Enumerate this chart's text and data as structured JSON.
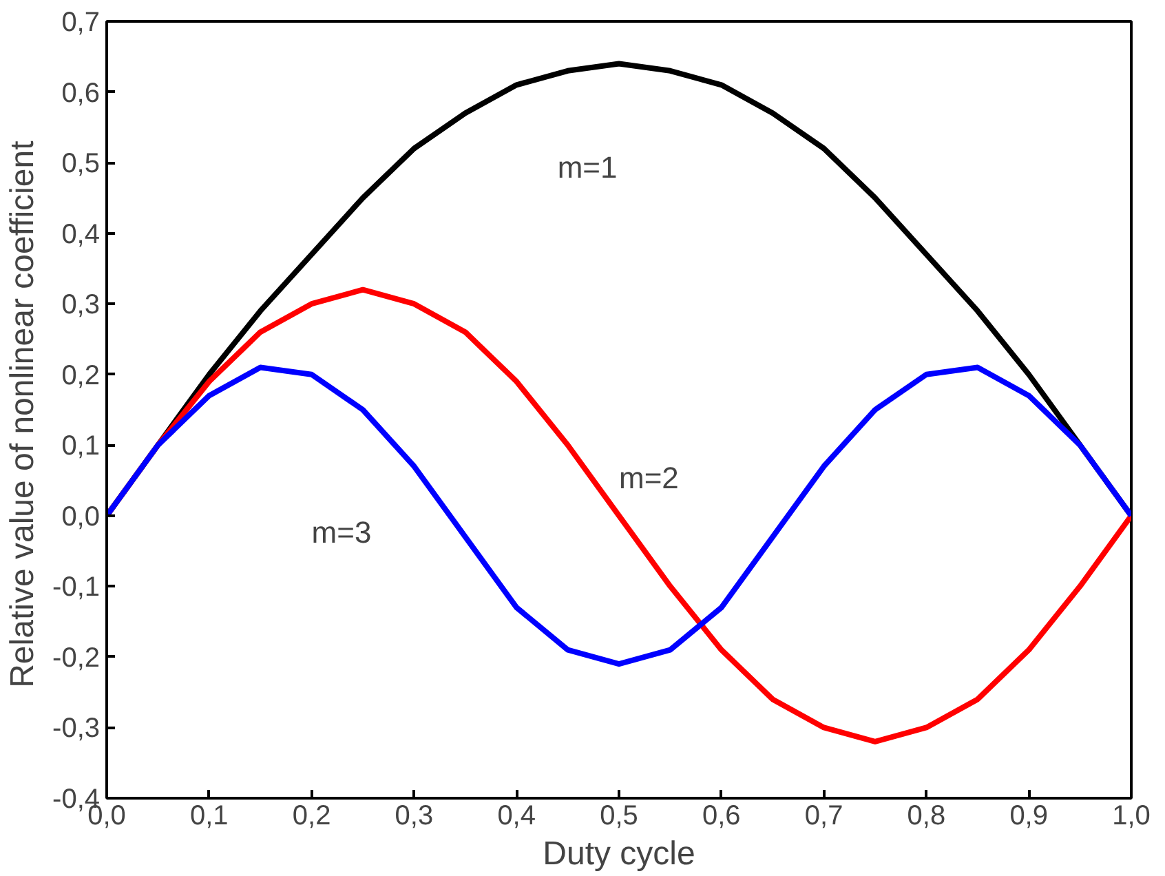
{
  "chart_data": {
    "type": "line",
    "xlabel": "Duty cycle",
    "ylabel": "Relative value of  nonlinear coefficient",
    "x": [
      0,
      0.05,
      0.1,
      0.15,
      0.2,
      0.25,
      0.3,
      0.35,
      0.4,
      0.45,
      0.5,
      0.55,
      0.6,
      0.65,
      0.7,
      0.75,
      0.8,
      0.85,
      0.9,
      0.95,
      1
    ],
    "series": [
      {
        "name": "m=1",
        "color": "#000000",
        "values": [
          0,
          0.1,
          0.2,
          0.29,
          0.37,
          0.45,
          0.52,
          0.57,
          0.61,
          0.63,
          0.64,
          0.63,
          0.61,
          0.57,
          0.52,
          0.45,
          0.37,
          0.29,
          0.2,
          0.1,
          0
        ]
      },
      {
        "name": "m=2",
        "color": "#ff0000",
        "values": [
          0,
          0.1,
          0.19,
          0.26,
          0.3,
          0.32,
          0.3,
          0.26,
          0.19,
          0.1,
          0,
          -0.1,
          -0.19,
          -0.26,
          -0.3,
          -0.32,
          -0.3,
          -0.26,
          -0.19,
          -0.1,
          0
        ]
      },
      {
        "name": "m=3",
        "color": "#0000ff",
        "values": [
          0,
          0.1,
          0.17,
          0.21,
          0.2,
          0.15,
          0.07,
          -0.03,
          -0.13,
          -0.19,
          -0.21,
          -0.19,
          -0.13,
          -0.03,
          0.07,
          0.15,
          0.2,
          0.21,
          0.17,
          0.1,
          0
        ]
      }
    ],
    "xlim": [
      0,
      1
    ],
    "ylim": [
      -0.4,
      0.7
    ],
    "xticks": [
      {
        "value": 0,
        "label": "0,0"
      },
      {
        "value": 0.1,
        "label": "0,1"
      },
      {
        "value": 0.2,
        "label": "0,2"
      },
      {
        "value": 0.3,
        "label": "0,3"
      },
      {
        "value": 0.4,
        "label": "0,4"
      },
      {
        "value": 0.5,
        "label": "0,5"
      },
      {
        "value": 0.6,
        "label": "0,6"
      },
      {
        "value": 0.7,
        "label": "0,7"
      },
      {
        "value": 0.8,
        "label": "0,8"
      },
      {
        "value": 0.9,
        "label": "0,9"
      },
      {
        "value": 1,
        "label": "1,0"
      }
    ],
    "yticks": [
      {
        "value": -0.4,
        "label": "-0,4"
      },
      {
        "value": -0.3,
        "label": "-0,3"
      },
      {
        "value": -0.2,
        "label": "-0,2"
      },
      {
        "value": -0.1,
        "label": "-0,1"
      },
      {
        "value": 0,
        "label": "0,0"
      },
      {
        "value": 0.1,
        "label": "0,1"
      },
      {
        "value": 0.2,
        "label": "0,2"
      },
      {
        "value": 0.3,
        "label": "0,3"
      },
      {
        "value": 0.4,
        "label": "0,4"
      },
      {
        "value": 0.5,
        "label": "0,5"
      },
      {
        "value": 0.6,
        "label": "0,6"
      },
      {
        "value": 0.7,
        "label": "0,7"
      }
    ],
    "grid": false
  }
}
